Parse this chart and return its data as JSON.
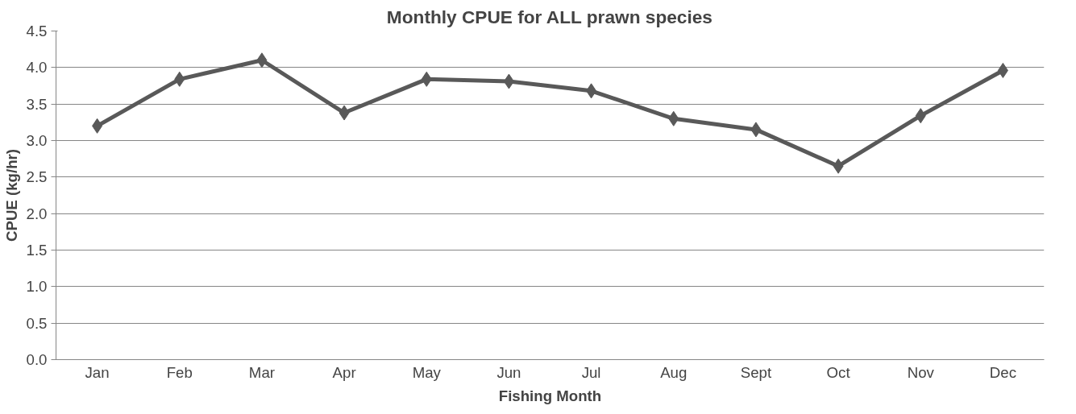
{
  "chart_data": {
    "type": "line",
    "title": "Monthly CPUE for ALL prawn species",
    "xlabel": "Fishing Month",
    "ylabel": "CPUE (kg/hr)",
    "categories": [
      "Jan",
      "Feb",
      "Mar",
      "Apr",
      "May",
      "Jun",
      "Jul",
      "Aug",
      "Sept",
      "Oct",
      "Nov",
      "Dec"
    ],
    "series": [
      {
        "color": "#595959",
        "values": [
          3.2,
          3.84,
          4.1,
          3.38,
          3.84,
          3.81,
          3.68,
          3.3,
          3.15,
          2.65,
          3.34,
          3.96
        ]
      }
    ],
    "ylim": [
      0,
      4.5
    ],
    "yticks": [
      {
        "value": 0,
        "label": "0.0"
      },
      {
        "value": 0.5,
        "label": "0.5"
      },
      {
        "value": 1,
        "label": "1.0"
      },
      {
        "value": 1.5,
        "label": "1.5"
      },
      {
        "value": 2,
        "label": "2.0"
      },
      {
        "value": 2.5,
        "label": "2.5"
      },
      {
        "value": 3,
        "label": "3.0"
      },
      {
        "value": 3.5,
        "label": "3.5"
      },
      {
        "value": 4,
        "label": "4.0"
      },
      {
        "value": 4.5,
        "label": "4.5"
      }
    ],
    "grid": "y",
    "marker": "diamond",
    "line_style": "solid"
  }
}
